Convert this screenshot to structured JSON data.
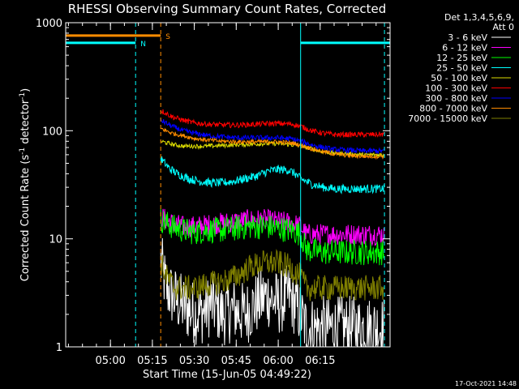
{
  "chart_data": {
    "type": "line",
    "title": "RHESSI Observing Summary Count Rates, Corrected",
    "xlabel": "Start Time (15-Jun-05 04:49:22)",
    "ylabel_main": "Corrected Count Rate (s",
    "ylabel_sup1": "-1",
    "ylabel_mid": " detector",
    "ylabel_sup2": "-1",
    "ylabel_end": ")",
    "yscale": "log",
    "ylim": [
      1,
      1000
    ],
    "y_ticks": [
      {
        "value": 1,
        "label": "1"
      },
      {
        "value": 10,
        "label": "10"
      },
      {
        "value": 100,
        "label": "100"
      },
      {
        "value": 1000,
        "label": "1000"
      }
    ],
    "xlim_minutes": [
      -16,
      100
    ],
    "x_ticks": [
      {
        "minute": 0,
        "label": "05:00"
      },
      {
        "minute": 15,
        "label": "05:15"
      },
      {
        "minute": 30,
        "label": "05:30"
      },
      {
        "minute": 45,
        "label": "05:45"
      },
      {
        "minute": 60,
        "label": "06:00"
      },
      {
        "minute": 75,
        "label": "06:15"
      }
    ],
    "legend_header": [
      "Det 1,3,4,5,6,9,",
      "Att 0"
    ],
    "legend_placement": "right",
    "footer_date": "17-Oct-2021 14:48",
    "flags": [
      {
        "label": "N",
        "color": "#00ffff",
        "y": 650,
        "segments": [
          [
            -16,
            9
          ],
          [
            68,
            100
          ]
        ],
        "label_x": 9
      },
      {
        "label": "S",
        "color": "#ff8c00",
        "y": 760,
        "segments": [
          [
            -16,
            18
          ]
        ],
        "label_x": 18
      }
    ],
    "vlines": [
      {
        "minute": -16,
        "color": "#00ffff",
        "dashed": false
      },
      {
        "minute": 9,
        "color": "#00ffff",
        "dashed": true
      },
      {
        "minute": 18,
        "color": "#ff8c00",
        "dashed": true
      },
      {
        "minute": 68,
        "color": "#00ffff",
        "dashed": false
      },
      {
        "minute": 98,
        "color": "#00ffff",
        "dashed": true
      }
    ],
    "data_start_minute": 18,
    "data_end_minute": 98,
    "series": [
      {
        "name": "3 - 6 keV",
        "color": "#ffffff",
        "x": [
          18,
          20,
          22,
          25,
          28,
          32,
          36,
          40,
          44,
          48,
          52,
          56,
          60,
          64,
          68,
          70,
          75,
          80,
          85,
          90,
          95,
          98
        ],
        "y": [
          6,
          3.5,
          3,
          2.5,
          2.2,
          2,
          2.5,
          2,
          2.2,
          2,
          2.5,
          3,
          2.5,
          3,
          2,
          1.5,
          1.5,
          1.5,
          1.5,
          1.5,
          1.5,
          1.5
        ],
        "noise": 0.3
      },
      {
        "name": "6 - 12 keV",
        "color": "#ff00ff",
        "x": [
          18,
          22,
          26,
          30,
          35,
          40,
          45,
          50,
          55,
          60,
          65,
          68,
          70,
          75,
          80,
          85,
          90,
          95,
          98
        ],
        "y": [
          16,
          14,
          13,
          13,
          13.5,
          14,
          14.5,
          15,
          15,
          14.5,
          14,
          13,
          11,
          11,
          11,
          11,
          11,
          11,
          11
        ],
        "noise": 0.1
      },
      {
        "name": "12 - 25 keV",
        "color": "#00ff00",
        "x": [
          18,
          22,
          26,
          30,
          35,
          40,
          45,
          50,
          55,
          60,
          65,
          68,
          70,
          75,
          80,
          85,
          90,
          95,
          98
        ],
        "y": [
          15,
          13,
          12,
          11.5,
          12,
          12,
          12.5,
          13,
          13,
          12.5,
          12,
          11,
          8,
          7.5,
          7.5,
          7.5,
          7.5,
          7.5,
          7.5
        ],
        "noise": 0.12
      },
      {
        "name": "25 - 50 keV",
        "color": "#00ffff",
        "x": [
          18,
          21,
          24,
          28,
          32,
          36,
          40,
          44,
          48,
          52,
          56,
          60,
          64,
          66,
          68,
          72,
          76,
          80,
          85,
          90,
          95,
          98
        ],
        "y": [
          55,
          45,
          40,
          36,
          34,
          33,
          33,
          34,
          36,
          38,
          42,
          44,
          43,
          40,
          36,
          32,
          30,
          29,
          29,
          29,
          29,
          29
        ],
        "noise": 0.04
      },
      {
        "name": "50 - 100 keV",
        "color": "#dddd00",
        "x": [
          18,
          22,
          26,
          30,
          35,
          40,
          45,
          50,
          55,
          60,
          65,
          68,
          72,
          76,
          80,
          85,
          90,
          95,
          98
        ],
        "y": [
          80,
          75,
          72,
          72,
          72,
          73,
          74,
          75,
          76,
          76,
          74,
          72,
          68,
          64,
          62,
          61,
          60,
          60,
          60
        ],
        "noise": 0.02
      },
      {
        "name": "100 - 300 keV",
        "color": "#ff0000",
        "x": [
          18,
          22,
          26,
          30,
          35,
          40,
          45,
          50,
          55,
          60,
          65,
          68,
          72,
          76,
          80,
          85,
          90,
          95,
          98
        ],
        "y": [
          155,
          135,
          125,
          118,
          115,
          113,
          113,
          114,
          116,
          117,
          115,
          110,
          100,
          95,
          92,
          92,
          92,
          92,
          93
        ],
        "noise": 0.025
      },
      {
        "name": "300 - 800 keV",
        "color": "#0000ff",
        "x": [
          18,
          22,
          26,
          30,
          35,
          40,
          45,
          50,
          55,
          60,
          65,
          68,
          72,
          76,
          80,
          85,
          90,
          95,
          98
        ],
        "y": [
          125,
          110,
          100,
          95,
          90,
          88,
          86,
          86,
          86,
          86,
          84,
          80,
          74,
          70,
          67,
          66,
          65,
          65,
          65
        ],
        "noise": 0.025
      },
      {
        "name": "800 - 7000 keV",
        "color": "#ff8c00",
        "x": [
          18,
          22,
          26,
          30,
          35,
          40,
          45,
          50,
          55,
          60,
          65,
          68,
          72,
          76,
          80,
          85,
          90,
          95,
          98
        ],
        "y": [
          105,
          95,
          90,
          85,
          82,
          80,
          79,
          79,
          79,
          79,
          77,
          74,
          68,
          64,
          61,
          59,
          58,
          58,
          58
        ],
        "noise": 0.02
      },
      {
        "name": "7000 - 15000 keV",
        "color": "#808000",
        "x": [
          18,
          20,
          23,
          26,
          30,
          35,
          40,
          45,
          50,
          55,
          60,
          64,
          68,
          70,
          75,
          80,
          85,
          90,
          95,
          98
        ],
        "y": [
          6,
          4.5,
          3.5,
          3.5,
          3.5,
          3.8,
          4,
          4.5,
          5.5,
          6,
          6,
          5.5,
          4.5,
          3.5,
          3.5,
          3.5,
          3.5,
          3.5,
          3.5,
          3.5
        ],
        "noise": 0.12
      }
    ]
  }
}
